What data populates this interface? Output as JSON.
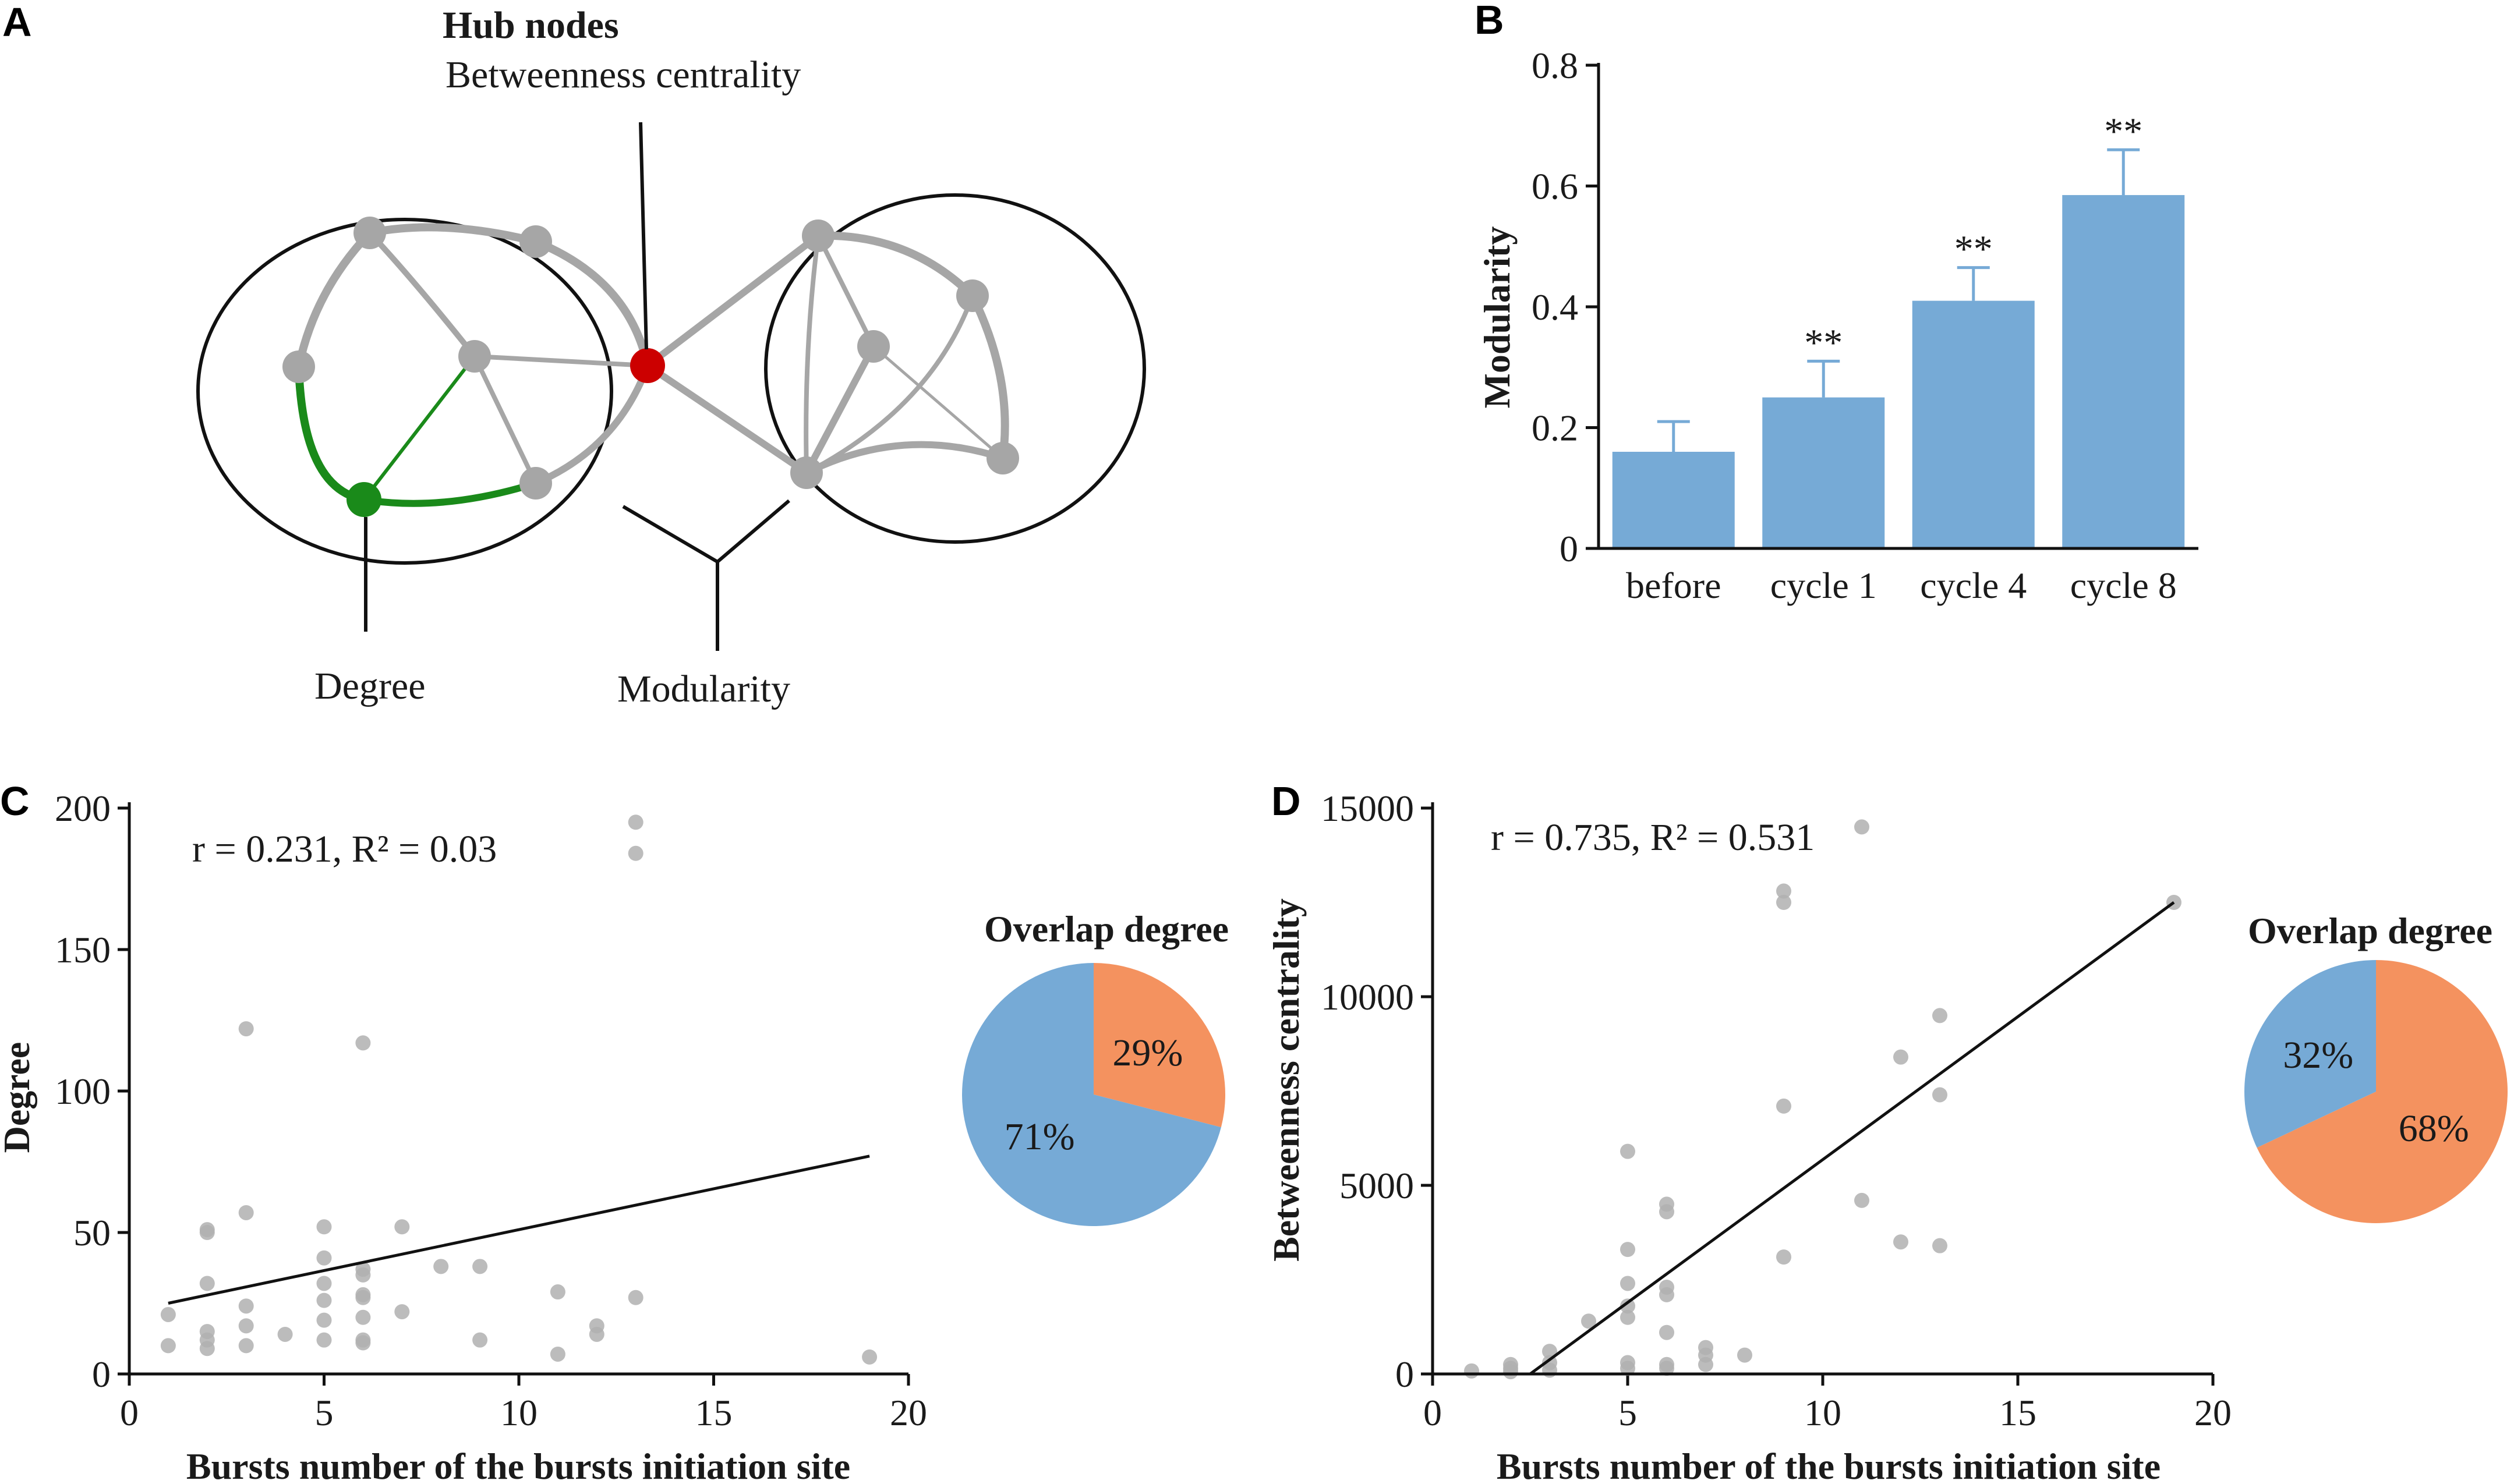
{
  "colors": {
    "bar": "#76aad6",
    "pie_blue": "#76aad6",
    "pie_orange": "#f4925f",
    "node_gray": "#a6a6a6",
    "edge_gray": "#a6a6a6",
    "green": "#1a8a1a",
    "hub_red": "#cc0000",
    "scatter": "#b0b0b0"
  },
  "panel_a": {
    "label": "A",
    "hub_title": "Hub nodes",
    "hub_subtitle": "Betweenness centrality",
    "degree_label": "Degree",
    "modularity_label": "Modularity"
  },
  "chart_data": [
    {
      "id": "B",
      "type": "bar",
      "panel_label": "B",
      "categories": [
        "before",
        "cycle 1",
        "cycle 4",
        "cycle 8"
      ],
      "values": [
        0.16,
        0.25,
        0.41,
        0.585
      ],
      "errors": [
        0.05,
        0.06,
        0.055,
        0.075
      ],
      "annotations": [
        "",
        "**",
        "**",
        "**"
      ],
      "ylabel": "Modularity",
      "xlabel": "",
      "ylim": [
        0,
        0.8
      ],
      "yticks": [
        "0",
        "0.2",
        "0.4",
        "0.6",
        "0.8"
      ],
      "ytick_values": [
        0,
        0.2,
        0.4,
        0.6,
        0.8
      ]
    },
    {
      "id": "C",
      "type": "scatter",
      "panel_label": "C",
      "xlabel": "Bursts number of the bursts initiation site",
      "ylabel": "Degree",
      "xlim": [
        0,
        20
      ],
      "ylim": [
        0,
        200
      ],
      "xticks": [
        "0",
        "5",
        "10",
        "15",
        "20"
      ],
      "xtick_values": [
        0,
        5,
        10,
        15,
        20
      ],
      "yticks": [
        "0",
        "50",
        "100",
        "150",
        "200"
      ],
      "ytick_values": [
        0,
        50,
        100,
        150,
        200
      ],
      "stats": "r = 0.231, R² = 0.03",
      "fit_line": {
        "x": [
          1,
          19
        ],
        "y": [
          25,
          77
        ]
      },
      "points": [
        [
          1,
          21
        ],
        [
          1,
          10
        ],
        [
          2,
          51
        ],
        [
          2,
          50
        ],
        [
          2,
          32
        ],
        [
          2,
          15
        ],
        [
          2,
          12
        ],
        [
          2,
          9
        ],
        [
          3,
          122
        ],
        [
          3,
          57
        ],
        [
          3,
          24
        ],
        [
          3,
          17
        ],
        [
          3,
          10
        ],
        [
          4,
          14
        ],
        [
          5,
          52
        ],
        [
          5,
          41
        ],
        [
          5,
          32
        ],
        [
          5,
          26
        ],
        [
          5,
          19
        ],
        [
          5,
          12
        ],
        [
          6,
          117
        ],
        [
          6,
          37
        ],
        [
          6,
          35
        ],
        [
          6,
          28
        ],
        [
          6,
          27
        ],
        [
          6,
          20
        ],
        [
          6,
          12
        ],
        [
          6,
          11
        ],
        [
          7,
          52
        ],
        [
          7,
          22
        ],
        [
          8,
          38
        ],
        [
          9,
          38
        ],
        [
          9,
          12
        ],
        [
          11,
          29
        ],
        [
          11,
          7
        ],
        [
          12,
          17
        ],
        [
          12,
          14
        ],
        [
          13,
          195
        ],
        [
          13,
          184
        ],
        [
          13,
          27
        ],
        [
          19,
          6
        ]
      ],
      "pie": {
        "title": "Overlap degree",
        "slices": [
          {
            "label": "29%",
            "value": 29,
            "color": "#f4925f"
          },
          {
            "label": "71%",
            "value": 71,
            "color": "#76aad6"
          }
        ]
      }
    },
    {
      "id": "D",
      "type": "scatter",
      "panel_label": "D",
      "xlabel": "Bursts number of the bursts initiation site",
      "ylabel": "Betweenness centrality",
      "xlim": [
        0,
        20
      ],
      "ylim": [
        0,
        15000
      ],
      "xticks": [
        "0",
        "5",
        "10",
        "15",
        "20"
      ],
      "xtick_values": [
        0,
        5,
        10,
        15,
        20
      ],
      "yticks": [
        "0",
        "5000",
        "10000",
        "15000"
      ],
      "ytick_values": [
        0,
        5000,
        10000,
        15000
      ],
      "stats": "r = 0.735, R² = 0.531",
      "fit_line": {
        "x": [
          2.5,
          19
        ],
        "y": [
          0,
          12500
        ]
      },
      "points": [
        [
          1,
          80
        ],
        [
          2,
          250
        ],
        [
          2,
          150
        ],
        [
          2,
          60
        ],
        [
          3,
          600
        ],
        [
          3,
          300
        ],
        [
          3,
          100
        ],
        [
          4,
          1400
        ],
        [
          5,
          5900
        ],
        [
          5,
          3300
        ],
        [
          5,
          2400
        ],
        [
          5,
          1800
        ],
        [
          5,
          1500
        ],
        [
          5,
          300
        ],
        [
          5,
          150
        ],
        [
          6,
          4500
        ],
        [
          6,
          4300
        ],
        [
          6,
          2300
        ],
        [
          6,
          2100
        ],
        [
          6,
          1100
        ],
        [
          6,
          250
        ],
        [
          6,
          150
        ],
        [
          7,
          700
        ],
        [
          7,
          500
        ],
        [
          7,
          250
        ],
        [
          8,
          500
        ],
        [
          9,
          12800
        ],
        [
          9,
          12500
        ],
        [
          9,
          7100
        ],
        [
          9,
          3100
        ],
        [
          11,
          14500
        ],
        [
          11,
          4600
        ],
        [
          12,
          8400
        ],
        [
          12,
          3500
        ],
        [
          13,
          9500
        ],
        [
          13,
          7400
        ],
        [
          13,
          3400
        ],
        [
          19,
          12500
        ]
      ],
      "pie": {
        "title": "Overlap degree",
        "slices": [
          {
            "label": "68%",
            "value": 68,
            "color": "#f4925f"
          },
          {
            "label": "32%",
            "value": 32,
            "color": "#76aad6"
          }
        ]
      }
    }
  ]
}
